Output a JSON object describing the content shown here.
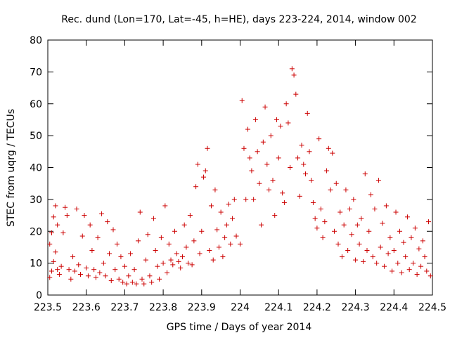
{
  "chart_data": {
    "type": "scatter",
    "title": "Rec. dund (Lon=170, Lat=-45, h=HE), days 223-224, 2014, window 002",
    "xlabel": "GPS time / Days of year 2014",
    "ylabel": "STEC from uqrg / TECUs",
    "xlim": [
      223.5,
      224.5
    ],
    "ylim": [
      0,
      80
    ],
    "xticks": [
      223.5,
      223.6,
      223.7,
      223.8,
      223.9,
      224.0,
      224.1,
      224.2,
      224.3,
      224.4,
      224.5
    ],
    "xtick_labels": [
      "223.5",
      "223.6",
      "223.7",
      "223.8",
      "223.9",
      "224",
      "224.1",
      "224.2",
      "224.3",
      "224.4",
      "224.5"
    ],
    "yticks": [
      0,
      10,
      20,
      30,
      40,
      50,
      60,
      70,
      80
    ],
    "ytick_labels": [
      "0",
      "10",
      "20",
      "30",
      "40",
      "50",
      "60",
      "70",
      "80"
    ],
    "grid": false,
    "marker": "+",
    "marker_color": "#cc0000",
    "series": [
      {
        "values": [
          [
            223.505,
            5.5
          ],
          [
            223.51,
            7.5
          ],
          [
            223.515,
            10.5
          ],
          [
            223.52,
            13.5
          ],
          [
            223.525,
            8.0
          ],
          [
            223.505,
            16.0
          ],
          [
            223.51,
            19.5
          ],
          [
            223.515,
            24.5
          ],
          [
            223.52,
            28.0
          ],
          [
            223.525,
            22.0
          ],
          [
            223.53,
            6.5
          ],
          [
            223.535,
            9.0
          ],
          [
            223.54,
            19.5
          ],
          [
            223.545,
            27.5
          ],
          [
            223.55,
            25.0
          ],
          [
            223.555,
            8.0
          ],
          [
            223.56,
            5.0
          ],
          [
            223.565,
            12.0
          ],
          [
            223.57,
            7.5
          ],
          [
            223.575,
            27.0
          ],
          [
            223.58,
            9.5
          ],
          [
            223.585,
            6.5
          ],
          [
            223.59,
            18.5
          ],
          [
            223.595,
            25.0
          ],
          [
            223.6,
            8.5
          ],
          [
            223.605,
            6.0
          ],
          [
            223.61,
            22.0
          ],
          [
            223.615,
            14.0
          ],
          [
            223.62,
            8.0
          ],
          [
            223.625,
            5.5
          ],
          [
            223.63,
            18.0
          ],
          [
            223.635,
            7.0
          ],
          [
            223.64,
            25.5
          ],
          [
            223.645,
            10.0
          ],
          [
            223.65,
            6.0
          ],
          [
            223.655,
            23.0
          ],
          [
            223.66,
            13.0
          ],
          [
            223.665,
            4.5
          ],
          [
            223.67,
            20.5
          ],
          [
            223.675,
            8.0
          ],
          [
            223.68,
            16.0
          ],
          [
            223.685,
            5.0
          ],
          [
            223.69,
            12.0
          ],
          [
            223.695,
            4.0
          ],
          [
            223.7,
            9.0
          ],
          [
            223.705,
            3.5
          ],
          [
            223.71,
            6.0
          ],
          [
            223.715,
            13.0
          ],
          [
            223.72,
            4.0
          ],
          [
            223.725,
            8.0
          ],
          [
            223.73,
            3.5
          ],
          [
            223.735,
            17.0
          ],
          [
            223.74,
            26.0
          ],
          [
            223.745,
            5.0
          ],
          [
            223.75,
            3.5
          ],
          [
            223.755,
            11.0
          ],
          [
            223.76,
            19.0
          ],
          [
            223.765,
            6.0
          ],
          [
            223.77,
            4.0
          ],
          [
            223.775,
            24.0
          ],
          [
            223.78,
            14.0
          ],
          [
            223.785,
            9.0
          ],
          [
            223.79,
            5.0
          ],
          [
            223.795,
            18.0
          ],
          [
            223.8,
            10.0
          ],
          [
            223.805,
            28.0
          ],
          [
            223.81,
            7.0
          ],
          [
            223.815,
            16.0
          ],
          [
            223.82,
            11.0
          ],
          [
            223.825,
            9.5
          ],
          [
            223.83,
            20.0
          ],
          [
            223.835,
            13.0
          ],
          [
            223.84,
            10.5
          ],
          [
            223.845,
            8.5
          ],
          [
            223.85,
            12.0
          ],
          [
            223.855,
            22.0
          ],
          [
            223.86,
            15.0
          ],
          [
            223.865,
            10.0
          ],
          [
            223.87,
            25.0
          ],
          [
            223.875,
            9.5
          ],
          [
            223.88,
            17.0
          ],
          [
            223.885,
            34.0
          ],
          [
            223.89,
            41.0
          ],
          [
            223.895,
            13.0
          ],
          [
            223.9,
            20.0
          ],
          [
            223.905,
            37.0
          ],
          [
            223.91,
            39.0
          ],
          [
            223.915,
            46.0
          ],
          [
            223.92,
            14.0
          ],
          [
            223.925,
            28.0
          ],
          [
            223.93,
            11.0
          ],
          [
            223.935,
            33.0
          ],
          [
            223.94,
            20.5
          ],
          [
            223.945,
            15.0
          ],
          [
            223.95,
            26.0
          ],
          [
            223.955,
            12.0
          ],
          [
            223.96,
            18.0
          ],
          [
            223.965,
            22.0
          ],
          [
            223.97,
            28.5
          ],
          [
            223.975,
            16.0
          ],
          [
            223.98,
            24.0
          ],
          [
            223.985,
            30.0
          ],
          [
            223.99,
            18.5
          ],
          [
            224.0,
            16.0
          ],
          [
            224.005,
            61.0
          ],
          [
            224.01,
            46.0
          ],
          [
            224.015,
            30.0
          ],
          [
            224.02,
            52.0
          ],
          [
            224.025,
            43.0
          ],
          [
            224.03,
            39.0
          ],
          [
            224.035,
            30.0
          ],
          [
            224.04,
            55.0
          ],
          [
            224.045,
            45.0
          ],
          [
            224.05,
            35.0
          ],
          [
            224.055,
            22.0
          ],
          [
            224.06,
            48.0
          ],
          [
            224.065,
            59.0
          ],
          [
            224.07,
            41.0
          ],
          [
            224.075,
            33.0
          ],
          [
            224.08,
            50.0
          ],
          [
            224.085,
            36.0
          ],
          [
            224.09,
            25.0
          ],
          [
            224.095,
            55.0
          ],
          [
            224.1,
            43.0
          ],
          [
            224.105,
            53.0
          ],
          [
            224.11,
            32.0
          ],
          [
            224.115,
            29.0
          ],
          [
            224.12,
            60.0
          ],
          [
            224.125,
            54.0
          ],
          [
            224.13,
            40.0
          ],
          [
            224.135,
            71.0
          ],
          [
            224.14,
            69.0
          ],
          [
            224.145,
            63.0
          ],
          [
            224.15,
            43.0
          ],
          [
            224.155,
            31.0
          ],
          [
            224.16,
            47.0
          ],
          [
            224.165,
            41.0
          ],
          [
            224.17,
            38.0
          ],
          [
            224.175,
            57.0
          ],
          [
            224.18,
            45.0
          ],
          [
            224.185,
            36.0
          ],
          [
            224.19,
            29.0
          ],
          [
            224.195,
            24.0
          ],
          [
            224.2,
            21.0
          ],
          [
            224.205,
            49.0
          ],
          [
            224.21,
            27.0
          ],
          [
            224.215,
            18.0
          ],
          [
            224.22,
            23.0
          ],
          [
            224.225,
            39.0
          ],
          [
            224.23,
            46.0
          ],
          [
            224.235,
            33.0
          ],
          [
            224.24,
            44.5
          ],
          [
            224.245,
            20.0
          ],
          [
            224.25,
            35.0
          ],
          [
            224.255,
            16.0
          ],
          [
            224.26,
            26.0
          ],
          [
            224.265,
            12.0
          ],
          [
            224.27,
            22.0
          ],
          [
            224.275,
            33.0
          ],
          [
            224.28,
            14.0
          ],
          [
            224.285,
            27.0
          ],
          [
            224.29,
            19.0
          ],
          [
            224.295,
            30.0
          ],
          [
            224.3,
            11.0
          ],
          [
            224.305,
            22.0
          ],
          [
            224.31,
            16.0
          ],
          [
            224.315,
            24.0
          ],
          [
            224.32,
            10.5
          ],
          [
            224.325,
            38.0
          ],
          [
            224.33,
            14.0
          ],
          [
            224.335,
            20.0
          ],
          [
            224.34,
            31.5
          ],
          [
            224.345,
            12.0
          ],
          [
            224.35,
            27.0
          ],
          [
            224.355,
            10.0
          ],
          [
            224.36,
            36.0
          ],
          [
            224.365,
            15.0
          ],
          [
            224.37,
            22.5
          ],
          [
            224.375,
            9.0
          ],
          [
            224.38,
            28.0
          ],
          [
            224.385,
            13.0
          ],
          [
            224.39,
            18.0
          ],
          [
            224.395,
            7.5
          ],
          [
            224.4,
            14.0
          ],
          [
            224.405,
            26.0
          ],
          [
            224.41,
            10.0
          ],
          [
            224.415,
            20.0
          ],
          [
            224.42,
            7.0
          ],
          [
            224.425,
            16.5
          ],
          [
            224.43,
            12.0
          ],
          [
            224.435,
            24.5
          ],
          [
            224.44,
            8.0
          ],
          [
            224.445,
            18.0
          ],
          [
            224.45,
            10.0
          ],
          [
            224.455,
            21.0
          ],
          [
            224.46,
            6.5
          ],
          [
            224.465,
            14.5
          ],
          [
            224.47,
            9.0
          ],
          [
            224.475,
            17.0
          ],
          [
            224.48,
            12.0
          ],
          [
            224.485,
            7.5
          ],
          [
            224.49,
            23.0
          ],
          [
            224.495,
            6.0
          ]
        ]
      }
    ]
  }
}
